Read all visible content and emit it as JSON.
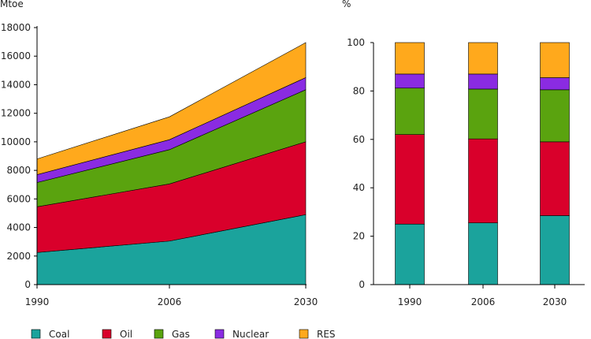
{
  "colors": {
    "Coal": "#1ba39c",
    "Oil": "#d9002b",
    "Gas": "#5aa30f",
    "Nuclear": "#8a2be2",
    "RES": "#ffa91c"
  },
  "chart_data": [
    {
      "type": "area",
      "ylabel": "Mtoe",
      "x": [
        "1990",
        "2006",
        "2030"
      ],
      "ylim": [
        0,
        18000
      ],
      "yticks": [
        "0",
        "2000",
        "4000",
        "6000",
        "8000",
        "10000",
        "12000",
        "14000",
        "16000",
        "18000"
      ],
      "stacked": true,
      "series": [
        {
          "name": "Coal",
          "values": [
            2250,
            3050,
            4900
          ]
        },
        {
          "name": "Oil",
          "values": [
            3200,
            4000,
            5100
          ]
        },
        {
          "name": "Gas",
          "values": [
            1700,
            2400,
            3650
          ]
        },
        {
          "name": "Nuclear",
          "values": [
            550,
            700,
            850
          ]
        },
        {
          "name": "RES",
          "values": [
            1100,
            1600,
            2450
          ]
        }
      ]
    },
    {
      "type": "bar",
      "ylabel": "%",
      "categories": [
        "1990",
        "2006",
        "2030"
      ],
      "ylim": [
        0,
        100
      ],
      "yticks": [
        "0",
        "20",
        "40",
        "60",
        "80",
        "100"
      ],
      "stacked": true,
      "series": [
        {
          "name": "Coal",
          "values": [
            25,
            25.5,
            28.5
          ]
        },
        {
          "name": "Oil",
          "values": [
            37,
            34.7,
            30.5
          ]
        },
        {
          "name": "Gas",
          "values": [
            19.2,
            20.6,
            21.5
          ]
        },
        {
          "name": "Nuclear",
          "values": [
            5.8,
            6.2,
            5
          ]
        },
        {
          "name": "RES",
          "values": [
            13,
            13,
            14.5
          ]
        }
      ]
    }
  ],
  "legend": [
    "Coal",
    "Oil",
    "Gas",
    "Nuclear",
    "RES"
  ]
}
